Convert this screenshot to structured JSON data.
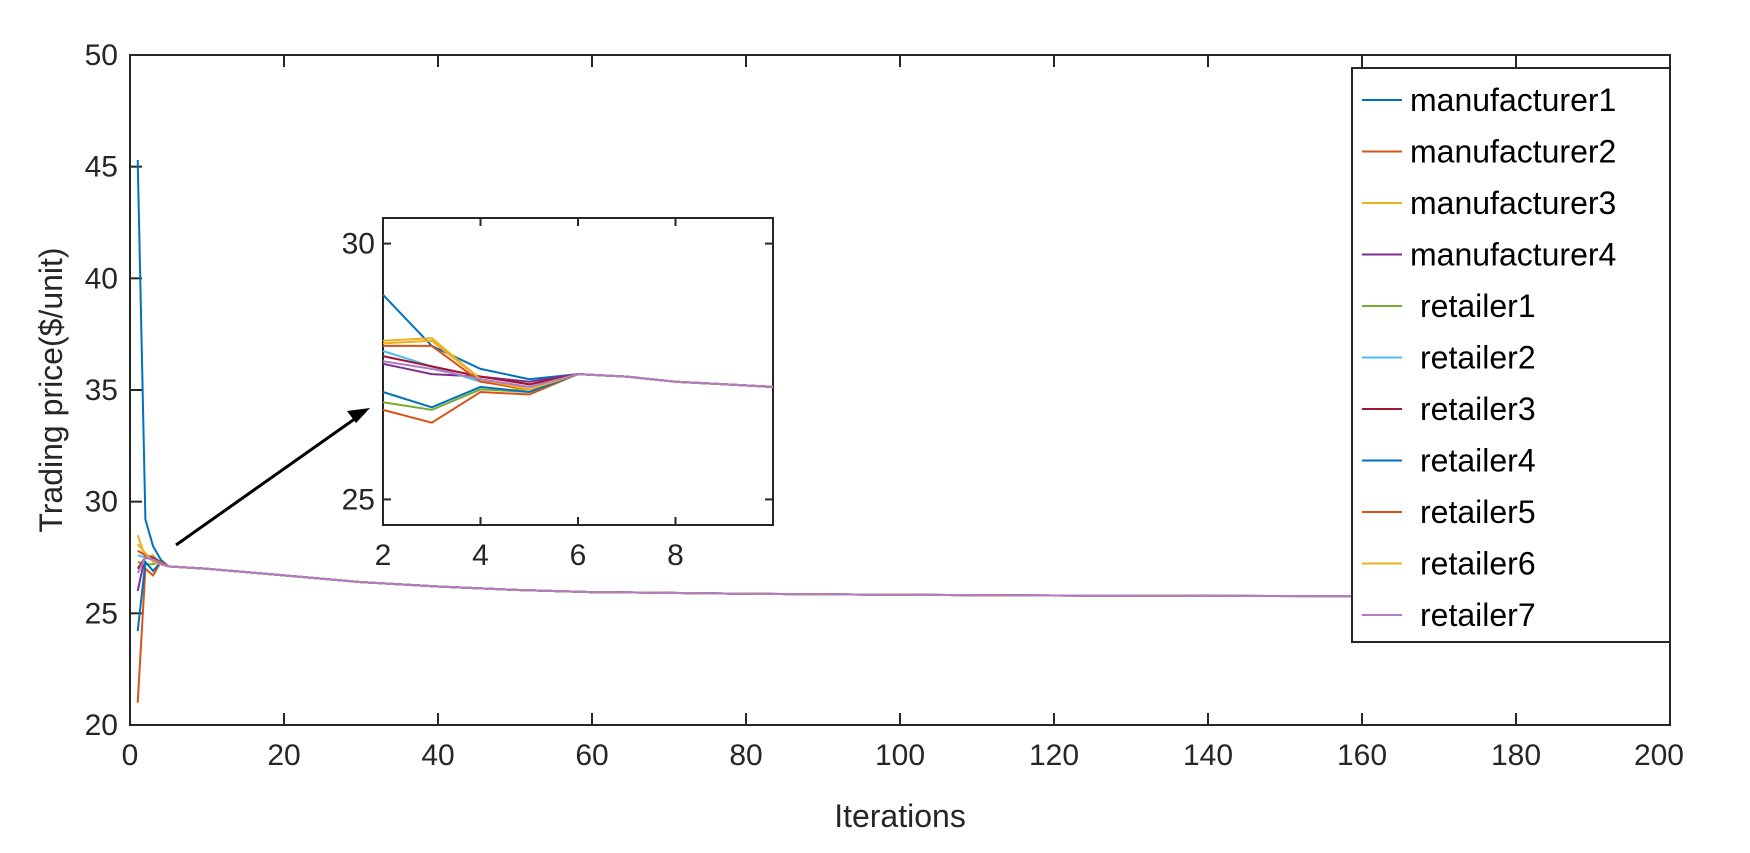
{
  "chart_data": {
    "type": "line",
    "title": "",
    "xlabel": "Iterations",
    "ylabel": "Trading price($/unit)",
    "xlim": [
      0,
      200
    ],
    "ylim": [
      20,
      50
    ],
    "xticks": [
      "0",
      "20",
      "40",
      "60",
      "80",
      "100",
      "120",
      "140",
      "160",
      "180",
      "200"
    ],
    "yticks": [
      "20",
      "25",
      "30",
      "35",
      "40",
      "45",
      "50"
    ],
    "grid": false,
    "legend": {
      "placement": "top-right",
      "entries": [
        "manufacturer1",
        "manufacturer2",
        "manufacturer3",
        "manufacturer4",
        "retailer1",
        "retailer2",
        "retailer3",
        "retailer4",
        "retailer5",
        "retailer6",
        "retailer7"
      ]
    },
    "tail": {
      "x": [
        5,
        10,
        20,
        30,
        40,
        50,
        60,
        80,
        100,
        120,
        140,
        160,
        180,
        200
      ],
      "y": [
        27.1,
        27.0,
        26.7,
        26.4,
        26.2,
        26.05,
        25.95,
        25.88,
        25.83,
        25.8,
        25.78,
        25.77,
        25.76,
        25.75
      ]
    },
    "series": [
      {
        "name": "manufacturer1",
        "color": "#0072BD",
        "x": [
          1,
          2,
          3,
          4
        ],
        "y": [
          45.3,
          29.2,
          28.0,
          27.4
        ]
      },
      {
        "name": "manufacturer2",
        "color": "#D95319",
        "x": [
          1,
          2,
          3,
          4
        ],
        "y": [
          21.0,
          27.0,
          26.7,
          27.3
        ]
      },
      {
        "name": "manufacturer3",
        "color": "#EDB120",
        "x": [
          1,
          2,
          3,
          4
        ],
        "y": [
          28.5,
          27.5,
          27.6,
          27.2
        ]
      },
      {
        "name": "manufacturer4",
        "color": "#7E2F8E",
        "x": [
          1,
          2,
          3,
          4
        ],
        "y": [
          26.0,
          27.6,
          27.5,
          27.3
        ]
      },
      {
        "name": "retailer1",
        "color": "#77AC30",
        "x": [
          1,
          2,
          3,
          4
        ],
        "y": [
          27.3,
          27.2,
          27.2,
          27.3
        ]
      },
      {
        "name": "retailer2",
        "color": "#4DBEEE",
        "x": [
          1,
          2,
          3,
          4
        ],
        "y": [
          27.6,
          27.5,
          27.4,
          27.3
        ]
      },
      {
        "name": "retailer3",
        "color": "#A2142F",
        "x": [
          1,
          2,
          3,
          4
        ],
        "y": [
          27.0,
          27.5,
          27.4,
          27.2
        ]
      },
      {
        "name": "retailer4",
        "color": "#0072BD",
        "x": [
          1,
          2,
          3,
          4
        ],
        "y": [
          24.2,
          27.3,
          26.9,
          27.3
        ]
      },
      {
        "name": "retailer5",
        "color": "#D95319",
        "x": [
          1,
          2,
          3,
          4
        ],
        "y": [
          27.8,
          27.6,
          27.4,
          27.3
        ]
      },
      {
        "name": "retailer6",
        "color": "#EDB120",
        "x": [
          1,
          2,
          3,
          4
        ],
        "y": [
          28.1,
          27.7,
          27.3,
          27.2
        ]
      },
      {
        "name": "retailer7",
        "color": "#B07CC6",
        "x": [
          1,
          2,
          3,
          4
        ],
        "y": [
          26.8,
          27.5,
          27.4,
          27.2
        ]
      }
    ],
    "inset": {
      "xlim": [
        2,
        10
      ],
      "ylim": [
        24.5,
        30.5
      ],
      "xticks": [
        "2",
        "4",
        "6",
        "8"
      ],
      "yticks": [
        "25",
        "30"
      ],
      "x": [
        2,
        3,
        4,
        5,
        6,
        7,
        8,
        9,
        10
      ],
      "tail_y": [
        27.45,
        27.4,
        27.3,
        27.25,
        27.2
      ],
      "series": [
        {
          "name": "manufacturer1",
          "y": [
            29.0,
            28.0,
            27.55,
            27.35
          ]
        },
        {
          "name": "manufacturer2",
          "y": [
            26.75,
            26.5,
            27.1,
            27.05
          ]
        },
        {
          "name": "manufacturer3",
          "y": [
            28.1,
            28.15,
            27.35,
            27.1
          ]
        },
        {
          "name": "manufacturer4",
          "y": [
            27.65,
            27.45,
            27.4,
            27.3
          ]
        },
        {
          "name": "retailer1",
          "y": [
            26.9,
            26.75,
            27.15,
            27.1
          ]
        },
        {
          "name": "retailer2",
          "y": [
            27.9,
            27.6,
            27.3,
            27.2
          ]
        },
        {
          "name": "retailer3",
          "y": [
            27.8,
            27.6,
            27.4,
            27.25
          ]
        },
        {
          "name": "retailer4",
          "y": [
            27.1,
            26.8,
            27.2,
            27.1
          ]
        },
        {
          "name": "retailer5",
          "y": [
            28.0,
            28.0,
            27.3,
            27.15
          ]
        },
        {
          "name": "retailer6",
          "y": [
            28.05,
            28.1,
            27.35,
            27.15
          ]
        },
        {
          "name": "retailer7",
          "y": [
            27.7,
            27.55,
            27.35,
            27.2
          ]
        }
      ]
    }
  }
}
